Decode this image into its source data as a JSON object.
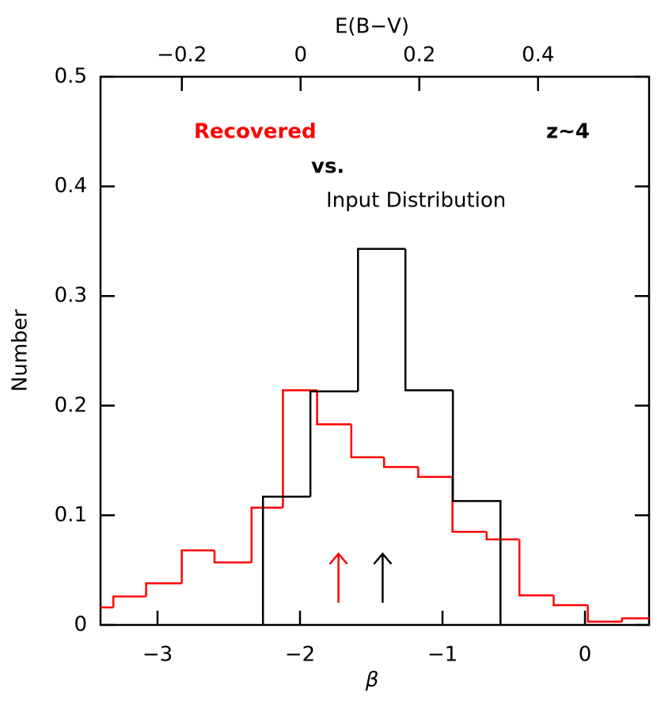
{
  "chart_data": {
    "type": "histogram",
    "xlabel": "β",
    "ylabel": "Number",
    "x2label": "E(B−V)",
    "xlim": [
      -3.4,
      0.45
    ],
    "xticks": [
      {
        "value": -3,
        "label": "−3"
      },
      {
        "value": -2,
        "label": "−2"
      },
      {
        "value": -1,
        "label": "−1"
      },
      0
    ],
    "x2lim": [
      -0.337,
      0.587
    ],
    "x2ticks": [
      {
        "value": -0.2,
        "label": "−0.2"
      },
      0,
      0.2,
      0.4
    ],
    "ylim": [
      0,
      0.5
    ],
    "yticks": [
      0,
      0.1,
      0.2,
      0.3,
      0.4,
      0.5
    ],
    "series": [
      {
        "name": "Recovered",
        "color": "#ff0000",
        "bins": [
          -3.55,
          -3.31,
          -3.08,
          -2.83,
          -2.6,
          -2.34,
          -2.12,
          -1.88,
          -1.64,
          -1.41,
          -1.17,
          -0.93,
          -0.69,
          -0.46,
          -0.22,
          0.02,
          0.26,
          0.49
        ],
        "values": [
          0.016,
          0.026,
          0.038,
          0.068,
          0.057,
          0.107,
          0.214,
          0.183,
          0.153,
          0.144,
          0.135,
          0.085,
          0.078,
          0.027,
          0.018,
          0.003,
          0.006
        ]
      },
      {
        "name": "Input Distribution",
        "color": "#000000",
        "bins": [
          -2.26,
          -1.927,
          -1.593,
          -1.26,
          -0.927,
          -0.593
        ],
        "values": [
          0.117,
          0.213,
          0.343,
          0.214,
          0.113
        ]
      }
    ],
    "arrows": [
      {
        "color": "#ff0000",
        "x": -1.73
      },
      {
        "color": "#000000",
        "x": -1.42
      }
    ],
    "annotations": [
      "vs.",
      "z~4"
    ]
  }
}
